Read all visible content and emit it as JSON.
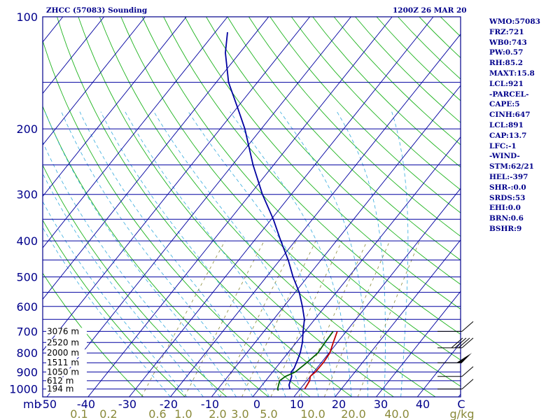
{
  "header": {
    "station": "ZHCC (57083) Sounding",
    "time": "1200Z 26 MAR 20"
  },
  "sidebar": {
    "items": [
      "WMO:57083",
      "FRZ:721",
      "WB0:743",
      "PW:0.57",
      "RH:85.2",
      "MAXT:15.8",
      "LCL:921",
      "-PARCEL-",
      "CAPE:5",
      "CINH:647",
      "LCL:891",
      "CAP:13.7",
      "LFC:-1",
      "-WIND-",
      "STM:62/21",
      "HEL:-397",
      "SHR-:0.0",
      "SRDS:53",
      "EHI:0.0",
      "BRN:0.6",
      "BSHR:9"
    ]
  },
  "chart_data": {
    "type": "line",
    "subtype": "skew-t log-p sounding",
    "ylabel": "mb",
    "pressure_ticks": [
      "100",
      "200",
      "300",
      "400",
      "500",
      "600",
      "700",
      "800",
      "900",
      "1000"
    ],
    "temperature_ticks": [
      "-50",
      "-40",
      "-30",
      "-20",
      "-10",
      "0",
      "10",
      "20",
      "30",
      "40",
      "C"
    ],
    "mixing_ratio_ticks": [
      "0.1",
      "0.2",
      "0.6",
      "1.0",
      "2.0",
      "3.0",
      "5.0",
      "10.0",
      "20.0",
      "40.0",
      "g/kg"
    ],
    "height_labels": [
      {
        "p": 700,
        "label": "3076 m"
      },
      {
        "p": 750,
        "label": "2520 m"
      },
      {
        "p": 800,
        "label": "2000 m"
      },
      {
        "p": 850,
        "label": "1511 m"
      },
      {
        "p": 900,
        "label": "1050 m"
      },
      {
        "p": 950,
        "label": "612 m"
      },
      {
        "p": 1000,
        "label": "194 m"
      }
    ],
    "ylim": [
      1050,
      100
    ],
    "xlim": [
      -50,
      50
    ],
    "y_scale": "log",
    "skewed_temperature_axis": true,
    "series": [
      {
        "color": "#0000a0",
        "points": [
          {
            "p": 110,
            "t": -77.0
          },
          {
            "p": 125,
            "t": -73.5
          },
          {
            "p": 150,
            "t": -67.0
          },
          {
            "p": 175,
            "t": -60.0
          },
          {
            "p": 200,
            "t": -54.0
          },
          {
            "p": 250,
            "t": -45.0
          },
          {
            "p": 300,
            "t": -37.0
          },
          {
            "p": 350,
            "t": -29.5
          },
          {
            "p": 400,
            "t": -23.5
          },
          {
            "p": 450,
            "t": -18.0
          },
          {
            "p": 500,
            "t": -13.5
          },
          {
            "p": 550,
            "t": -9.0
          },
          {
            "p": 600,
            "t": -5.5
          },
          {
            "p": 650,
            "t": -2.5
          },
          {
            "p": 700,
            "t": -0.5
          },
          {
            "p": 750,
            "t": 1.5
          },
          {
            "p": 800,
            "t": 3.0
          },
          {
            "p": 850,
            "t": 4.0
          },
          {
            "p": 880,
            "t": 4.5
          },
          {
            "p": 900,
            "t": 4.5
          },
          {
            "p": 925,
            "t": 5.5
          },
          {
            "p": 950,
            "t": 6.0
          },
          {
            "p": 975,
            "t": 6.5
          },
          {
            "p": 1000,
            "t": 7.5
          }
        ]
      },
      {
        "color": "#c00000",
        "points": [
          {
            "p": 700,
            "t": 7.8
          },
          {
            "p": 750,
            "t": 9.0
          },
          {
            "p": 800,
            "t": 10.2
          },
          {
            "p": 850,
            "t": 10.5
          },
          {
            "p": 900,
            "t": 10.4
          },
          {
            "p": 925,
            "t": 10.0
          },
          {
            "p": 950,
            "t": 10.7
          },
          {
            "p": 1000,
            "t": 11.1
          }
        ]
      },
      {
        "color": "#006000",
        "points": [
          {
            "p": 700,
            "t": 6.8
          },
          {
            "p": 750,
            "t": 7.0
          },
          {
            "p": 800,
            "t": 7.3
          },
          {
            "p": 850,
            "t": 6.5
          },
          {
            "p": 900,
            "t": 5.5
          },
          {
            "p": 925,
            "t": 4.0
          },
          {
            "p": 950,
            "t": 3.4
          },
          {
            "p": 1000,
            "t": 4.5
          },
          {
            "p": 1010,
            "t": 5.0
          }
        ]
      }
    ],
    "wind_barbs": [
      {
        "p": 700,
        "speed_kt": 10
      },
      {
        "p": 775,
        "speed_kt": 40
      },
      {
        "p": 850,
        "speed_kt": 50
      },
      {
        "p": 925,
        "speed_kt": 10
      },
      {
        "p": 1000,
        "speed_kt": 10
      }
    ]
  }
}
